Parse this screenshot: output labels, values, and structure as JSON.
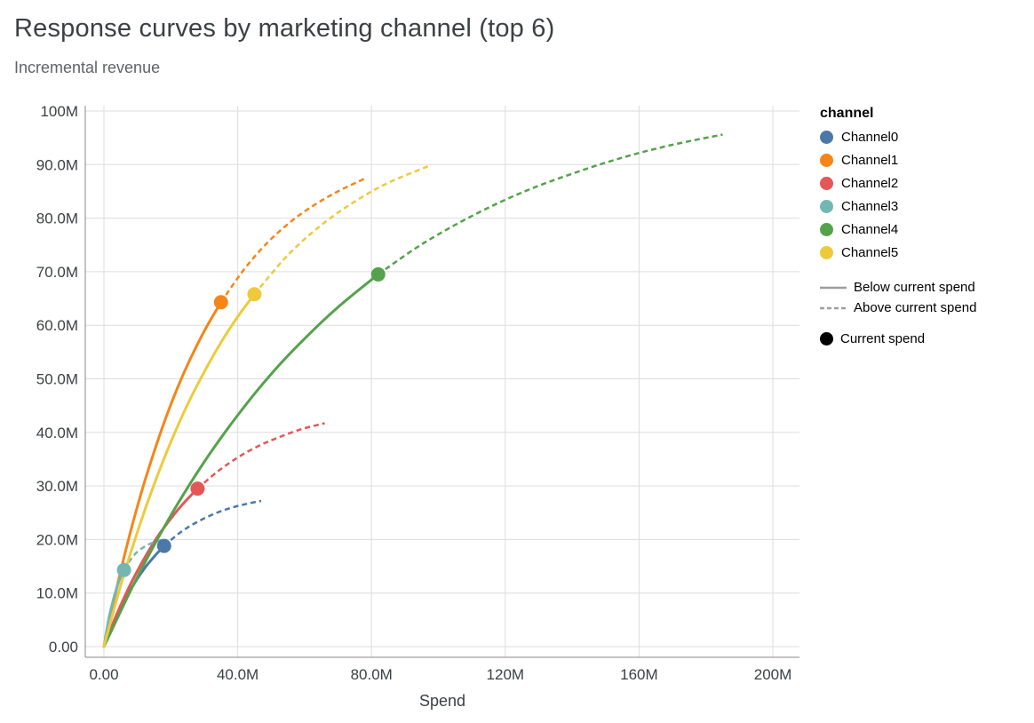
{
  "chart_data": {
    "type": "line",
    "title": "Response curves by marketing channel (top 6)",
    "subtitle": "Incremental revenue",
    "xlabel": "Spend",
    "ylabel": "Incremental revenue",
    "value_unit": "M",
    "xlim": [
      -6,
      208
    ],
    "ylim": [
      -2,
      101
    ],
    "grid": true,
    "legend_position": "right",
    "x_ticks": [
      {
        "value": 0,
        "label": "0.00"
      },
      {
        "value": 40,
        "label": "40.0M"
      },
      {
        "value": 80,
        "label": "80.0M"
      },
      {
        "value": 120,
        "label": "120M"
      },
      {
        "value": 160,
        "label": "160M"
      },
      {
        "value": 200,
        "label": "200M"
      }
    ],
    "y_ticks": [
      {
        "value": 0,
        "label": "0.00"
      },
      {
        "value": 10,
        "label": "10.0M"
      },
      {
        "value": 20,
        "label": "20.0M"
      },
      {
        "value": 30,
        "label": "30.0M"
      },
      {
        "value": 40,
        "label": "40.0M"
      },
      {
        "value": 50,
        "label": "50.0M"
      },
      {
        "value": 60,
        "label": "60.0M"
      },
      {
        "value": 70,
        "label": "70.0M"
      },
      {
        "value": 80,
        "label": "80.0M"
      },
      {
        "value": 90,
        "label": "90.0M"
      },
      {
        "value": 100,
        "label": "100M"
      }
    ],
    "series": [
      {
        "name": "Channel0",
        "color": "#4c78a8",
        "current_spend": {
          "x": 18,
          "y": 18.8
        },
        "points_solid": [
          [
            0,
            0
          ],
          [
            3,
            4.6
          ],
          [
            6,
            8.5
          ],
          [
            9,
            11.7
          ],
          [
            12,
            14.5
          ],
          [
            15,
            16.8
          ],
          [
            18,
            18.8
          ]
        ],
        "points_dashed": [
          [
            18,
            18.8
          ],
          [
            23,
            21.4
          ],
          [
            28,
            23.3
          ],
          [
            33,
            24.8
          ],
          [
            38,
            25.9
          ],
          [
            43,
            26.7
          ],
          [
            47,
            27.2
          ]
        ]
      },
      {
        "name": "Channel1",
        "color": "#f58518",
        "current_spend": {
          "x": 35,
          "y": 64.3
        },
        "points_solid": [
          [
            0,
            0
          ],
          [
            5,
            14.1
          ],
          [
            10,
            26.2
          ],
          [
            15,
            36.4
          ],
          [
            20,
            45.2
          ],
          [
            25,
            52.6
          ],
          [
            30,
            58.9
          ],
          [
            35,
            64.3
          ]
        ],
        "points_dashed": [
          [
            35,
            64.3
          ],
          [
            42,
            70.5
          ],
          [
            49,
            75.5
          ],
          [
            56,
            79.4
          ],
          [
            63,
            82.5
          ],
          [
            70,
            85.0
          ],
          [
            78,
            87.4
          ]
        ]
      },
      {
        "name": "Channel2",
        "color": "#e45756",
        "current_spend": {
          "x": 28,
          "y": 29.5
        },
        "points_solid": [
          [
            0,
            0
          ],
          [
            4,
            6.3
          ],
          [
            8,
            11.7
          ],
          [
            12,
            16.4
          ],
          [
            16,
            20.5
          ],
          [
            20,
            23.9
          ],
          [
            24,
            26.9
          ],
          [
            28,
            29.5
          ]
        ],
        "points_dashed": [
          [
            28,
            29.5
          ],
          [
            34,
            32.7
          ],
          [
            40,
            35.3
          ],
          [
            46,
            37.4
          ],
          [
            52,
            39.0
          ],
          [
            59,
            40.6
          ],
          [
            66,
            41.7
          ]
        ]
      },
      {
        "name": "Channel3",
        "color": "#72b7b2",
        "current_spend": {
          "x": 6,
          "y": 14.3
        },
        "points_solid": [
          [
            0,
            0
          ],
          [
            1.5,
            5.3
          ],
          [
            3,
            9.2
          ],
          [
            4.5,
            12.2
          ],
          [
            6,
            14.3
          ]
        ],
        "points_dashed": [
          [
            6,
            14.3
          ],
          [
            9,
            17.1
          ],
          [
            12,
            18.6
          ],
          [
            15,
            19.5
          ],
          [
            18,
            20.0
          ]
        ]
      },
      {
        "name": "Channel4",
        "color": "#54a24b",
        "current_spend": {
          "x": 82,
          "y": 69.5
        },
        "points_solid": [
          [
            0,
            0
          ],
          [
            10,
            13.0
          ],
          [
            20,
            24.5
          ],
          [
            30,
            34.5
          ],
          [
            40,
            43.2
          ],
          [
            50,
            50.9
          ],
          [
            60,
            57.5
          ],
          [
            70,
            63.4
          ],
          [
            82,
            69.5
          ]
        ],
        "points_dashed": [
          [
            82,
            69.5
          ],
          [
            95,
            75.1
          ],
          [
            110,
            80.4
          ],
          [
            125,
            84.8
          ],
          [
            140,
            88.3
          ],
          [
            155,
            91.3
          ],
          [
            170,
            93.7
          ],
          [
            185,
            95.6
          ]
        ]
      },
      {
        "name": "Channel5",
        "color": "#eeca3b",
        "current_spend": {
          "x": 45,
          "y": 65.8
        },
        "points_solid": [
          [
            0,
            0
          ],
          [
            5,
            11.4
          ],
          [
            10,
            21.4
          ],
          [
            15,
            30.3
          ],
          [
            20,
            38.2
          ],
          [
            25,
            45.2
          ],
          [
            30,
            51.3
          ],
          [
            35,
            56.8
          ],
          [
            40,
            61.6
          ],
          [
            45,
            65.8
          ]
        ],
        "points_dashed": [
          [
            45,
            65.8
          ],
          [
            55,
            73.1
          ],
          [
            65,
            78.7
          ],
          [
            75,
            83.1
          ],
          [
            85,
            86.6
          ],
          [
            97,
            89.7
          ]
        ]
      }
    ],
    "legend": {
      "channel_title": "channel",
      "line_styles": [
        {
          "style": "solid",
          "label": "Below current spend"
        },
        {
          "style": "dashed",
          "label": "Above current spend"
        }
      ],
      "marker": {
        "label": "Current spend",
        "color": "#000000"
      },
      "sample_color": "#9e9e9e"
    },
    "colors": {
      "grid": "#dddddd",
      "axis": "#888888",
      "tick_text": "#3c4043",
      "axis_title_text": "#3c4043"
    }
  }
}
